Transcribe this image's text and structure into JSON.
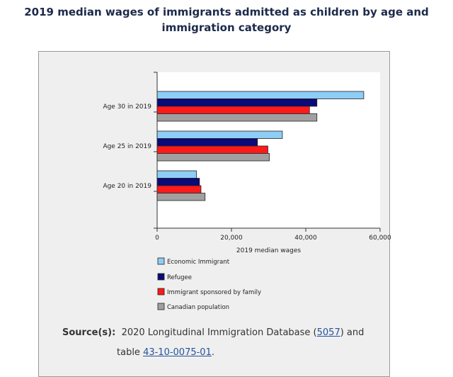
{
  "title": "2019 median wages of immigrants admitted as children by age and immigration category",
  "chart_data": {
    "type": "bar",
    "orientation": "horizontal",
    "categories": [
      "Age 30 in 2019",
      "Age 25 in 2019",
      "Age 20 in 2019"
    ],
    "series": [
      {
        "name": "Economic Immigrant",
        "color": "#8ecdf5",
        "values": [
          55600,
          33700,
          10600
        ]
      },
      {
        "name": "Refugee",
        "color": "#0a0a78",
        "values": [
          43000,
          27000,
          11400
        ]
      },
      {
        "name": "Immigrant sponsored by family",
        "color": "#ff1a1a",
        "values": [
          41000,
          29800,
          11800
        ]
      },
      {
        "name": "Canadian population",
        "color": "#a0a0a0",
        "values": [
          43000,
          30200,
          12900
        ]
      }
    ],
    "xlabel": "2019 median wages",
    "xticks": [
      "0",
      "20,000",
      "40,000",
      "60,000"
    ],
    "xlim": [
      0,
      60000
    ],
    "grid": false,
    "legend": "bottom"
  },
  "source": {
    "label": "Source(s):",
    "text1": "2020 Longitudinal Immigration Database (",
    "link1": "5057",
    "text2": ") and",
    "text3": "table ",
    "link2": "43-10-0075-01",
    "text4": "."
  }
}
